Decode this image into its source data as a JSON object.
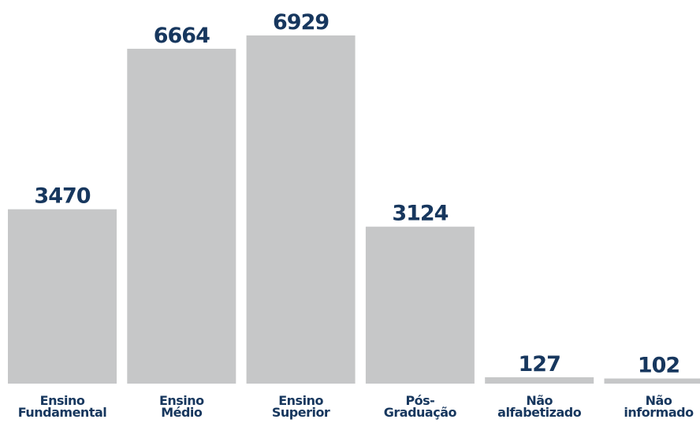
{
  "chart_data": {
    "type": "bar",
    "categories": [
      "Ensino\nFundamental",
      "Ensino\nMédio",
      "Ensino\nSuperior",
      "Pós-\nGraduação",
      "Não\nalfabetizado",
      "Não\ninformado"
    ],
    "values": [
      3470,
      6664,
      6929,
      3124,
      127,
      102
    ],
    "color": "#c6c7c8"
  }
}
